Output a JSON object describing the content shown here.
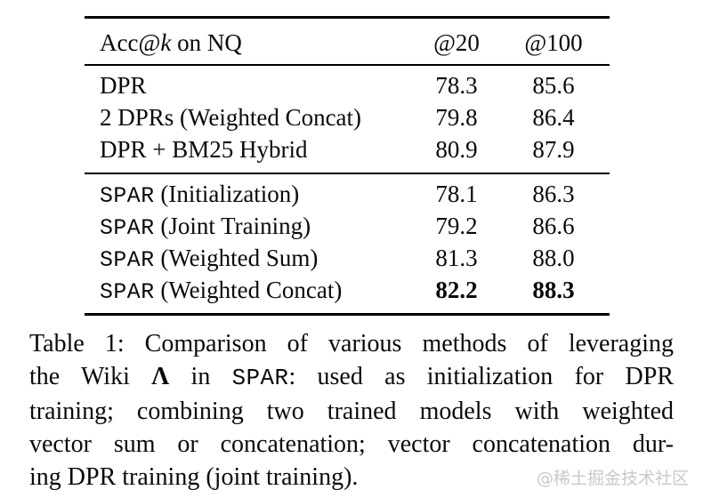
{
  "table": {
    "header": {
      "title_prefix": "Acc@",
      "title_k": "k",
      "title_suffix": " on NQ",
      "col_at20": "@20",
      "col_at100": "@100"
    },
    "groups": [
      {
        "rows": [
          {
            "label_mono": "",
            "label": "DPR",
            "at20": "78.3",
            "at100": "85.6"
          },
          {
            "label_mono": "",
            "label": "2 DPRs (Weighted Concat)",
            "at20": "79.8",
            "at100": "86.4"
          },
          {
            "label_mono": "",
            "label": "DPR + BM25 Hybrid",
            "at20": "80.9",
            "at100": "87.9"
          }
        ]
      },
      {
        "rows": [
          {
            "label_mono": "SPAR",
            "label": " (Initialization)",
            "at20": "78.1",
            "at100": "86.3"
          },
          {
            "label_mono": "SPAR",
            "label": " (Joint Training)",
            "at20": "79.2",
            "at100": "86.6"
          },
          {
            "label_mono": "SPAR",
            "label": " (Weighted Sum)",
            "at20": "81.3",
            "at100": "88.0"
          },
          {
            "label_mono": "SPAR",
            "label": " (Weighted Concat)",
            "at20": "82.2",
            "at100": "88.3"
          }
        ]
      }
    ]
  },
  "caption": {
    "line1": "Table 1: Comparison of various methods of leveraging",
    "line2_a": "the Wiki ",
    "line2_lambda": "Λ",
    "line2_b": " in ",
    "line2_spar": "SPAR",
    "line2_c": ": used as initialization for DPR",
    "line3": "training; combining two trained models with weighted",
    "line4": "vector sum or concatenation; vector concatenation dur-",
    "line5": "ing DPR training (joint training)."
  },
  "watermark": {
    "text": "@稀土掘金技术社区",
    "color": "#c9c9c9"
  }
}
